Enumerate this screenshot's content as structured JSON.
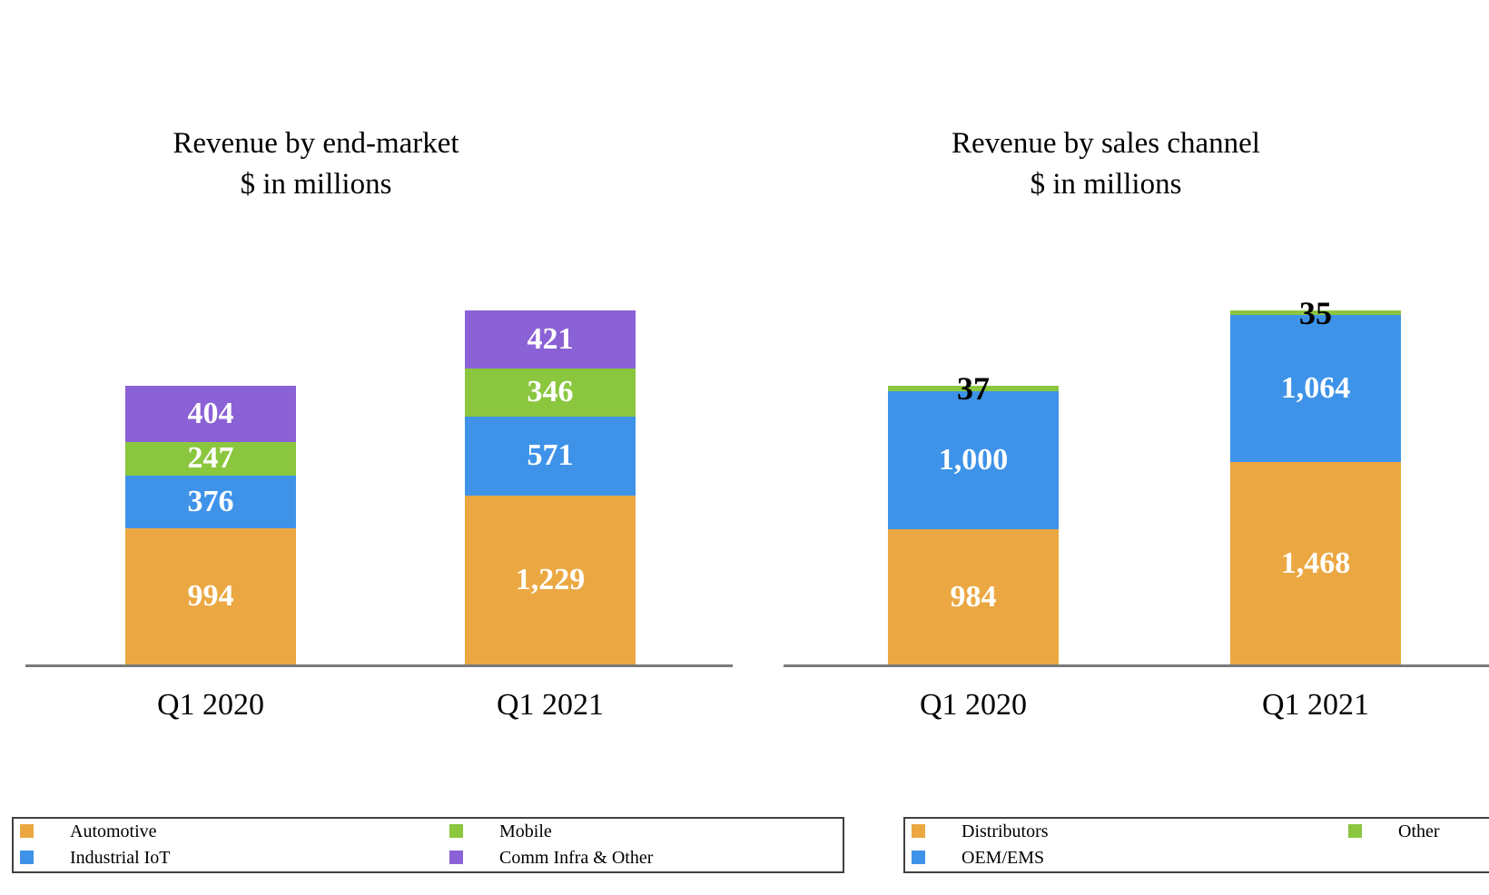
{
  "canvas": {
    "background": "#FFFFFF"
  },
  "colors": {
    "axis": "#7A7A7A",
    "legend_border": "#404040",
    "automotive_orange": "#EBA842",
    "industrial_blue": "#3E93E9",
    "mobile_green": "#8BC63F",
    "comm_purple": "#8B61D6",
    "value_label_light": "#FFFFFF",
    "value_label_dark": "#000000"
  },
  "chart_data": [
    {
      "type": "bar",
      "stacked": true,
      "title": "Revenue by end-market",
      "subtitle": "$ in millions",
      "categories": [
        "Q1 2020",
        "Q1 2021"
      ],
      "series": [
        {
          "name": "Automotive",
          "color": "#EBA842",
          "values": [
            994,
            1229
          ],
          "labels": [
            "994",
            "1,229"
          ],
          "label_color": "#FFFFFF",
          "label_placement": "inside"
        },
        {
          "name": "Industrial IoT",
          "color": "#3E93E9",
          "values": [
            376,
            571
          ],
          "labels": [
            "376",
            "571"
          ],
          "label_color": "#FFFFFF",
          "label_placement": "inside"
        },
        {
          "name": "Mobile",
          "color": "#8BC63F",
          "values": [
            247,
            346
          ],
          "labels": [
            "247",
            "346"
          ],
          "label_color": "#FFFFFF",
          "label_placement": "inside"
        },
        {
          "name": "Comm Infra & Other",
          "color": "#8B61D6",
          "values": [
            404,
            421
          ],
          "labels": [
            "404",
            "421"
          ],
          "label_color": "#FFFFFF",
          "label_placement": "inside"
        }
      ],
      "ylim": [
        0,
        2567
      ],
      "grid": false,
      "legend_position": "bottom-left-box"
    },
    {
      "type": "bar",
      "stacked": true,
      "title": "Revenue by sales channel",
      "subtitle": "$ in millions",
      "categories": [
        "Q1 2020",
        "Q1 2021"
      ],
      "series": [
        {
          "name": "Distributors",
          "color": "#EBA842",
          "values": [
            984,
            1468
          ],
          "labels": [
            "984",
            "1,468"
          ],
          "label_color": "#FFFFFF",
          "label_placement": "inside"
        },
        {
          "name": "OEM/EMS",
          "color": "#3E93E9",
          "values": [
            1000,
            1064
          ],
          "labels": [
            "1,000",
            "1,064"
          ],
          "label_color": "#FFFFFF",
          "label_placement": "inside"
        },
        {
          "name": "Other",
          "color": "#8BC63F",
          "values": [
            37,
            35
          ],
          "labels": [
            "37",
            "35"
          ],
          "label_color": "#000000",
          "label_placement": "overlay"
        }
      ],
      "ylim": [
        0,
        2567
      ],
      "grid": false,
      "legend_position": "bottom-right-box"
    }
  ],
  "legends": [
    {
      "name": "end-market-legend",
      "columns": [
        [
          {
            "label": "Automotive",
            "color": "#EBA842"
          },
          {
            "label": "Industrial IoT",
            "color": "#3E93E9"
          }
        ],
        [
          {
            "label": "Mobile",
            "color": "#8BC63F"
          },
          {
            "label": "Comm Infra & Other",
            "color": "#8B61D6"
          }
        ]
      ]
    },
    {
      "name": "sales-channel-legend",
      "columns": [
        [
          {
            "label": "Distributors",
            "color": "#EBA842"
          },
          {
            "label": "OEM/EMS",
            "color": "#3E93E9"
          }
        ],
        [
          {
            "label": "Other",
            "color": "#8BC63F"
          }
        ]
      ]
    }
  ]
}
